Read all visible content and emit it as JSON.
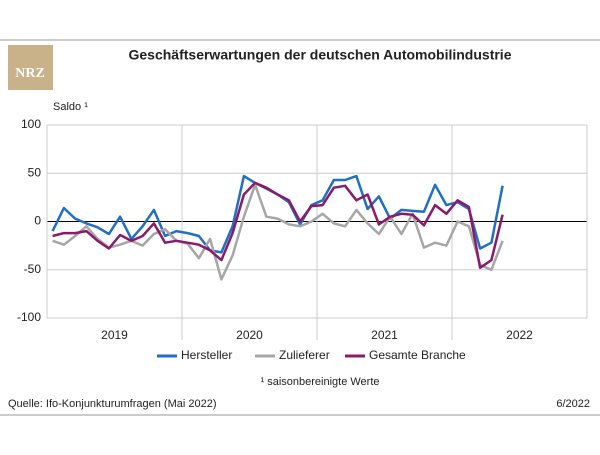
{
  "logo": "NRZ",
  "source": "Quelle: Ifo-Konjunkturumfragen (Mai 2022)",
  "date": "6/2022",
  "chart_data": {
    "type": "line",
    "title": "Geschäftserwartungen der deutschen Automobilindustrie",
    "y_label": "Saldo ¹",
    "footnote": "¹ saisonbereinigte Werte",
    "year_labels": [
      "2019",
      "2020",
      "2021",
      "2022"
    ],
    "ylim": [
      -100,
      100
    ],
    "yticks": [
      -100,
      -50,
      0,
      50,
      100
    ],
    "grid": true,
    "series": [
      {
        "name": "Hersteller",
        "color": "#1f6fc5",
        "values": [
          -10,
          14,
          3,
          -2,
          -6,
          -13,
          5,
          -18,
          -5,
          12,
          -15,
          -10,
          -12,
          -15,
          -30,
          -32,
          -5,
          47,
          40,
          34,
          28,
          20,
          -3,
          17,
          22,
          43,
          43,
          47,
          13,
          26,
          3,
          12,
          11,
          10,
          38,
          17,
          20,
          13,
          -28,
          -22,
          37
        ]
      },
      {
        "name": "Zulieferer",
        "color": "#a6a6a6",
        "values": [
          -20,
          -24,
          -15,
          -5,
          -18,
          -27,
          -24,
          -20,
          -25,
          -13,
          -8,
          -20,
          -23,
          -38,
          -18,
          -60,
          -35,
          5,
          38,
          5,
          3,
          -3,
          -5,
          0,
          8,
          -2,
          -5,
          12,
          -2,
          -13,
          5,
          -13,
          8,
          -27,
          -22,
          -25,
          0,
          -5,
          -45,
          -50,
          -20
        ]
      },
      {
        "name": "Gesamte Branche",
        "color": "#8b1a6b",
        "values": [
          -15,
          -12,
          -12,
          -10,
          -20,
          -28,
          -14,
          -20,
          -15,
          -2,
          -22,
          -20,
          -22,
          -24,
          -30,
          -40,
          -12,
          28,
          40,
          35,
          28,
          22,
          0,
          16,
          17,
          35,
          37,
          22,
          28,
          -3,
          5,
          8,
          7,
          -4,
          17,
          8,
          22,
          15,
          -48,
          -40,
          7
        ]
      }
    ]
  }
}
